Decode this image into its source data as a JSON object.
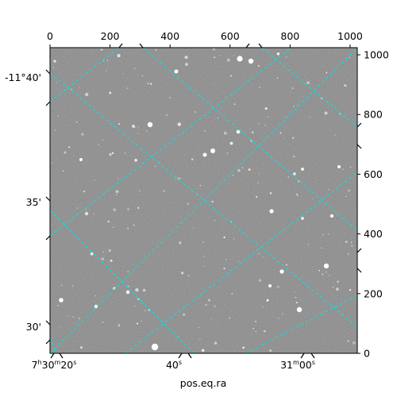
{
  "chart_data": {
    "type": "image",
    "title": "",
    "xlabel": "pos.eq.ra",
    "ylabel": "",
    "pixel_axes": {
      "x_ticks": [
        0,
        200,
        400,
        600,
        800,
        1000
      ],
      "y_ticks": [
        0,
        200,
        400,
        600,
        800,
        1000
      ],
      "xlim": [
        0,
        1024
      ],
      "ylim": [
        0,
        1024
      ]
    },
    "world_axes": {
      "ra_tick_labels": [
        "7h30m20s",
        "40s",
        "31m00s"
      ],
      "dec_tick_labels": [
        "-11°40'",
        "35'",
        "30'"
      ]
    },
    "grid": true,
    "grid_color": "#00e5e5",
    "image_colormap": "gray",
    "background_level": "#6e6e6e"
  }
}
